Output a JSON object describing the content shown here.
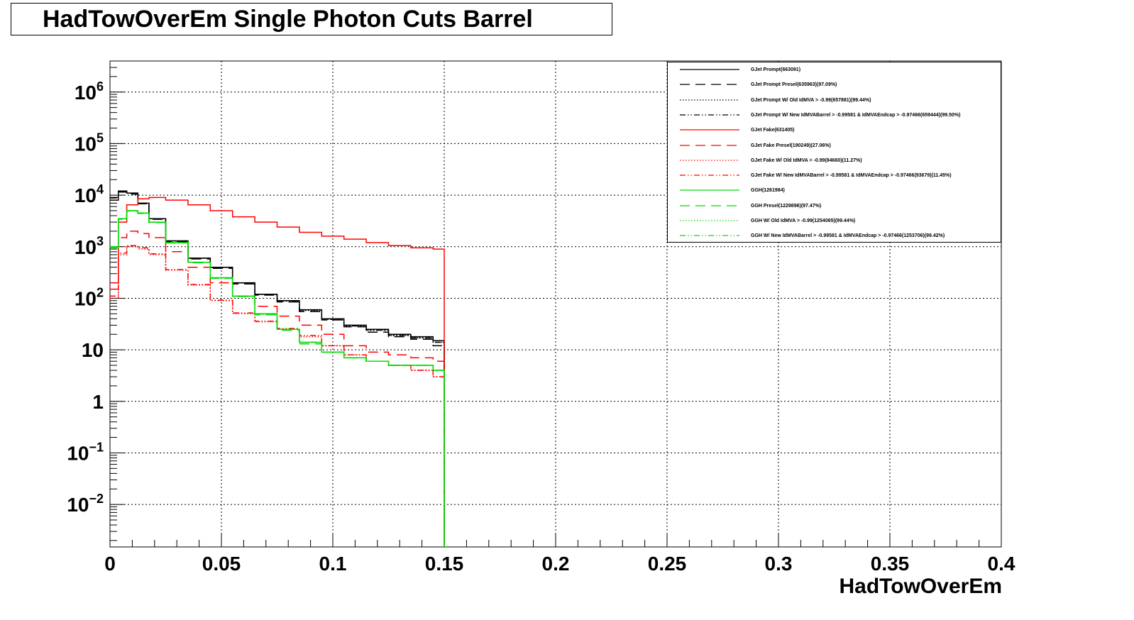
{
  "title": "HadTowOverEm Single Photon Cuts Barrel",
  "chart_data": {
    "type": "line",
    "subtype": "step-histogram",
    "title": "HadTowOverEm Single Photon Cuts Barrel",
    "xlabel": "HadTowOverEm",
    "ylabel": "",
    "xlim": [
      0,
      0.4
    ],
    "ylim": [
      0.0015,
      4000000
    ],
    "yscale": "log",
    "grid": true,
    "legend_position": "top-right",
    "x_ticks": [
      {
        "value": 0,
        "label": "0"
      },
      {
        "value": 0.05,
        "label": "0.05"
      },
      {
        "value": 0.1,
        "label": "0.1"
      },
      {
        "value": 0.15,
        "label": "0.15"
      },
      {
        "value": 0.2,
        "label": "0.2"
      },
      {
        "value": 0.25,
        "label": "0.25"
      },
      {
        "value": 0.3,
        "label": "0.3"
      },
      {
        "value": 0.35,
        "label": "0.35"
      },
      {
        "value": 0.4,
        "label": "0.4"
      }
    ],
    "y_ticks": [
      {
        "value": 0.01,
        "base": "10",
        "exp": "−2"
      },
      {
        "value": 0.1,
        "base": "10",
        "exp": "−1"
      },
      {
        "value": 1,
        "base": "1",
        "exp": ""
      },
      {
        "value": 10,
        "base": "10",
        "exp": ""
      },
      {
        "value": 100,
        "base": "10",
        "exp": "2"
      },
      {
        "value": 1000,
        "base": "10",
        "exp": "3"
      },
      {
        "value": 10000,
        "base": "10",
        "exp": "4"
      },
      {
        "value": 100000,
        "base": "10",
        "exp": "5"
      },
      {
        "value": 1000000,
        "base": "10",
        "exp": "6"
      }
    ],
    "x": [
      0.0025,
      0.005,
      0.01,
      0.015,
      0.02,
      0.03,
      0.04,
      0.05,
      0.06,
      0.07,
      0.08,
      0.09,
      0.1,
      0.11,
      0.12,
      0.13,
      0.14,
      0.15
    ],
    "series": [
      {
        "name": "GJet Prompt(663091)",
        "color": "#000000",
        "dash": "solid",
        "values": [
          9000,
          12000,
          11000,
          7000,
          3500,
          1300,
          600,
          400,
          200,
          120,
          90,
          60,
          40,
          30,
          25,
          20,
          18,
          15
        ]
      },
      {
        "name": "GJet Prompt Presel(635963)(97.09%)",
        "color": "#000000",
        "dash": "longdash",
        "values": [
          8000,
          11500,
          10500,
          6800,
          3400,
          1250,
          580,
          380,
          190,
          115,
          85,
          55,
          38,
          28,
          22,
          18,
          16,
          12
        ]
      },
      {
        "name": "GJet Prompt W/ Old IdMVA > -0.99(657881)(99.44%)",
        "color": "#000000",
        "dash": "dotted",
        "values": [
          8800,
          11800,
          10900,
          6950,
          3480,
          1290,
          595,
          395,
          198,
          118,
          88,
          58,
          39,
          29,
          24,
          19,
          17,
          14
        ]
      },
      {
        "name": "GJet Prompt W/ New IdMVABarrel > -0.99581 & IdMVAEndcap > -0.97466(659444)(99.50%)",
        "color": "#000000",
        "dash": "dashdot",
        "values": [
          8850,
          11850,
          10920,
          6970,
          3490,
          1295,
          598,
          398,
          199,
          119,
          89,
          59,
          39,
          29,
          24,
          19,
          17,
          14
        ]
      },
      {
        "name": "GJet Fake(631405)",
        "color": "#ff0000",
        "dash": "solid",
        "values": [
          200,
          3000,
          6500,
          8500,
          9000,
          8000,
          6500,
          5000,
          3800,
          3000,
          2400,
          1900,
          1600,
          1400,
          1200,
          1050,
          950,
          900
        ]
      },
      {
        "name": "GJet Fake Presel(190249)(27.06%)",
        "color": "#ff0000",
        "dash": "longdash",
        "values": [
          150,
          1500,
          2000,
          1800,
          1500,
          800,
          400,
          200,
          110,
          70,
          45,
          30,
          20,
          12,
          9,
          8,
          7,
          6
        ]
      },
      {
        "name": "GJet Fake W/ Old IdMVA > -0.99(84660)(11.27%)",
        "color": "#ff0000",
        "dash": "dotted",
        "values": [
          100,
          700,
          1000,
          900,
          700,
          350,
          180,
          90,
          50,
          35,
          25,
          18,
          12,
          8,
          6,
          5,
          4,
          3
        ]
      },
      {
        "name": "GJet Fake W/ New IdMVABarrel > -0.99581 & IdMVAEndcap > -0.97466(93679)(11.45%)",
        "color": "#ff0000",
        "dash": "dashdot",
        "values": [
          110,
          750,
          1050,
          950,
          730,
          360,
          185,
          92,
          52,
          36,
          26,
          19,
          12,
          8,
          6,
          5,
          4,
          3
        ]
      },
      {
        "name": "GGH(1261984)",
        "color": "#00dd00",
        "dash": "solid",
        "values": [
          1000,
          3500,
          5000,
          4500,
          3000,
          1200,
          500,
          250,
          110,
          50,
          25,
          14,
          9,
          7,
          6,
          5,
          5,
          4
        ]
      },
      {
        "name": "GGH Presel(1229896)(97.47%)",
        "color": "#00dd00",
        "dash": "longdash",
        "values": [
          950,
          3400,
          4900,
          4400,
          2950,
          1180,
          490,
          245,
          108,
          48,
          24,
          13,
          9,
          7,
          6,
          5,
          5,
          4
        ]
      },
      {
        "name": "GGH W/ Old IdMVA > -0.99(1254065)(99.44%)",
        "color": "#00dd00",
        "dash": "dotted",
        "values": [
          990,
          3480,
          4980,
          4480,
          2990,
          1195,
          498,
          249,
          109,
          49,
          25,
          14,
          9,
          7,
          6,
          5,
          5,
          4
        ]
      },
      {
        "name": "GGH W/ New IdMVABarrel > -0.99581 & IdMVAEndcap > -0.97466(1253706)(99.42%)",
        "color": "#00dd00",
        "dash": "dashdot",
        "values": [
          992,
          3482,
          4982,
          4482,
          2992,
          1196,
          499,
          249,
          109,
          49,
          25,
          14,
          9,
          7,
          6,
          5,
          5,
          4
        ]
      }
    ]
  }
}
